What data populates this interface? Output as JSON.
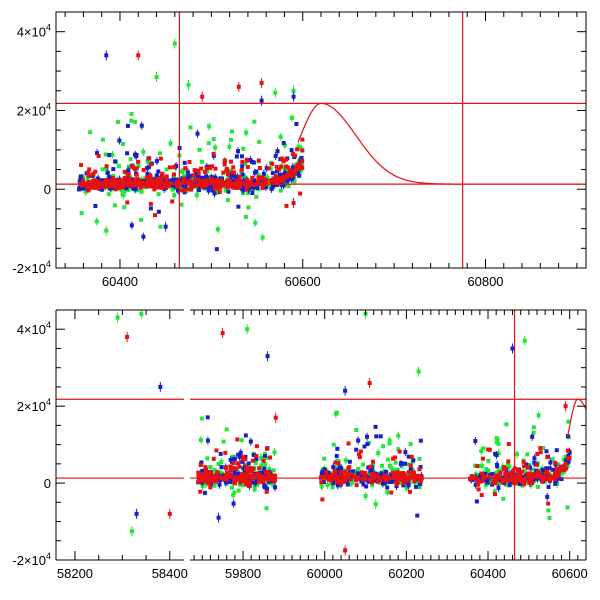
{
  "colors": {
    "green": "#22e63a",
    "blue": "#1520c8",
    "red": "#e81010",
    "reference_line": "#e81010",
    "model_curve": "#e81010",
    "frame": "#000000"
  },
  "chart_data": [
    {
      "type": "scatter",
      "title": "",
      "xlabel": "",
      "ylabel": "",
      "xlim": [
        60330,
        60910
      ],
      "ylim": [
        -20000,
        45000
      ],
      "x_ticks": [
        60400,
        60600,
        60800
      ],
      "x_tick_labels": [
        "60400",
        "60600",
        "60800"
      ],
      "x_minor_step": 20,
      "y_ticks": [
        -20000,
        0,
        20000,
        40000
      ],
      "y_tick_labels": [
        {
          "mantissa": "-2×10",
          "exp": "4"
        },
        {
          "mantissa": "0",
          "exp": ""
        },
        {
          "mantissa": "2×10",
          "exp": "4"
        },
        {
          "mantissa": "4×10",
          "exp": "4"
        }
      ],
      "y_minor_step": 5000,
      "grid": false,
      "legend": "none",
      "reference_lines": {
        "horizontal": [
          1300,
          21800
        ],
        "vertical": [
          60465,
          60775
        ]
      },
      "model_curve": {
        "baseline": 1300,
        "peak_x": 60620,
        "peak_y": 21800,
        "x": [
          60595,
          60910
        ]
      },
      "series": [
        {
          "color": "green",
          "x_range": [
            60355,
            60600
          ],
          "n_points": 340,
          "outliers": [
            [
              60460,
              37000
            ],
            [
              60475,
              26500
            ],
            [
              60440,
              28500
            ],
            [
              60385,
              -10500
            ],
            [
              60590,
              25000
            ],
            [
              60570,
              24500
            ]
          ]
        },
        {
          "color": "blue",
          "x_range": [
            60355,
            60600
          ],
          "n_points": 340,
          "outliers": [
            [
              60385,
              34000
            ],
            [
              60555,
              22500
            ],
            [
              60590,
              23500
            ],
            [
              60450,
              -9500
            ],
            [
              60485,
              -21000
            ]
          ]
        },
        {
          "color": "red",
          "x_range": [
            60355,
            60600
          ],
          "n_points": 380,
          "outliers": [
            [
              60420,
              34000
            ],
            [
              60555,
              27000
            ],
            [
              60490,
              23500
            ],
            [
              60590,
              -3500
            ],
            [
              60530,
              26000
            ]
          ]
        }
      ]
    },
    {
      "type": "scatter",
      "title": "",
      "xlabel": "",
      "ylabel": "",
      "ylim": [
        -20000,
        45000
      ],
      "broken_axis": true,
      "segments": [
        {
          "xlim": [
            58160,
            58430
          ],
          "x_ticks": [
            58200,
            58400
          ],
          "x_tick_labels": [
            "58200",
            "58400"
          ],
          "x_minor_step": 50
        },
        {
          "xlim": [
            59670,
            60640
          ],
          "x_ticks": [
            59800,
            60000,
            60200,
            60400,
            60600
          ],
          "x_tick_labels": [
            "59800",
            "60000",
            "60200",
            "60400",
            "60600"
          ],
          "x_minor_step": 20
        }
      ],
      "y_ticks": [
        -20000,
        0,
        20000,
        40000
      ],
      "y_tick_labels": [
        {
          "mantissa": "-2×10",
          "exp": "4"
        },
        {
          "mantissa": "0",
          "exp": ""
        },
        {
          "mantissa": "2×10",
          "exp": "4"
        },
        {
          "mantissa": "4×10",
          "exp": "4"
        }
      ],
      "y_minor_step": 5000,
      "grid": false,
      "legend": "none",
      "reference_lines": {
        "horizontal": [
          1300,
          21800
        ],
        "vertical": [
          60465
        ]
      },
      "model_curve": {
        "baseline": 1300,
        "peak_x": 60620,
        "peak_y": 21800,
        "x": [
          60595,
          60640
        ]
      },
      "observing_seasons": [
        [
          58170,
          58420
        ],
        [
          59690,
          59880
        ],
        [
          59990,
          60240
        ],
        [
          60355,
          60600
        ]
      ],
      "series": [
        {
          "color": "green",
          "n_points_per_season": 130,
          "outliers": [
            [
              58290,
              43000
            ],
            [
              58340,
              44000
            ],
            [
              59810,
              40000
            ],
            [
              60100,
              44000
            ],
            [
              60490,
              37000
            ],
            [
              60230,
              29000
            ],
            [
              58320,
              -12500
            ],
            [
              60125,
              -5500
            ]
          ]
        },
        {
          "color": "blue",
          "n_points_per_season": 130,
          "outliers": [
            [
              58380,
              25000
            ],
            [
              59860,
              33000
            ],
            [
              60460,
              35000
            ],
            [
              58330,
              -8000
            ],
            [
              59740,
              -9000
            ],
            [
              60050,
              24000
            ]
          ]
        },
        {
          "color": "red",
          "n_points_per_season": 150,
          "outliers": [
            [
              58310,
              38000
            ],
            [
              59750,
              39000
            ],
            [
              59880,
              17000
            ],
            [
              60110,
              26000
            ],
            [
              60590,
              20000
            ],
            [
              60050,
              -17500
            ],
            [
              58400,
              -8000
            ]
          ]
        }
      ]
    }
  ]
}
